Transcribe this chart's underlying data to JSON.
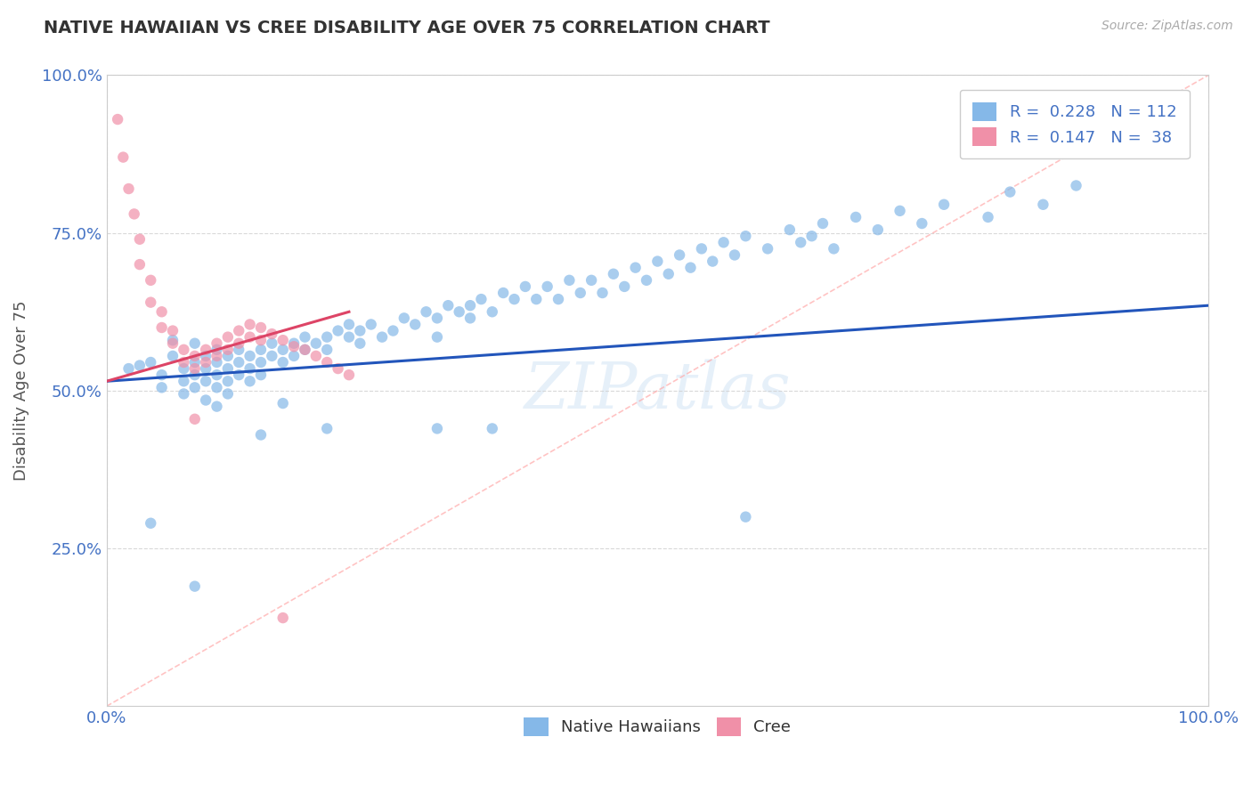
{
  "title": "NATIVE HAWAIIAN VS CREE DISABILITY AGE OVER 75 CORRELATION CHART",
  "source_text": "Source: ZipAtlas.com",
  "ylabel": "Disability Age Over 75",
  "xlim": [
    0.0,
    1.0
  ],
  "ylim": [
    0.0,
    1.0
  ],
  "xtick_labels": [
    "0.0%",
    "100.0%"
  ],
  "ytick_labels": [
    "25.0%",
    "50.0%",
    "75.0%",
    "100.0%"
  ],
  "ytick_positions": [
    0.25,
    0.5,
    0.75,
    1.0
  ],
  "nh_color": "#85b8e8",
  "cree_color": "#f090a8",
  "nh_line_color": "#2255bb",
  "cree_line_color": "#dd4466",
  "diagonal_color": "#ffaaaa",
  "watermark": "ZIPatlas",
  "nh_R": 0.228,
  "nh_N": 112,
  "cree_R": 0.147,
  "cree_N": 38,
  "nh_line_x0": 0.0,
  "nh_line_y0": 0.515,
  "nh_line_x1": 1.0,
  "nh_line_y1": 0.635,
  "cree_line_x0": 0.0,
  "cree_line_y0": 0.515,
  "cree_line_x1": 0.22,
  "cree_line_y1": 0.625,
  "nh_scatter_x": [
    0.02,
    0.03,
    0.04,
    0.05,
    0.05,
    0.06,
    0.06,
    0.07,
    0.07,
    0.07,
    0.08,
    0.08,
    0.08,
    0.08,
    0.09,
    0.09,
    0.09,
    0.09,
    0.1,
    0.1,
    0.1,
    0.1,
    0.1,
    0.11,
    0.11,
    0.11,
    0.11,
    0.12,
    0.12,
    0.12,
    0.13,
    0.13,
    0.13,
    0.14,
    0.14,
    0.14,
    0.15,
    0.15,
    0.16,
    0.16,
    0.17,
    0.17,
    0.18,
    0.18,
    0.19,
    0.2,
    0.2,
    0.21,
    0.22,
    0.22,
    0.23,
    0.23,
    0.24,
    0.25,
    0.26,
    0.27,
    0.28,
    0.29,
    0.3,
    0.3,
    0.31,
    0.32,
    0.33,
    0.33,
    0.34,
    0.35,
    0.36,
    0.37,
    0.38,
    0.39,
    0.4,
    0.41,
    0.42,
    0.43,
    0.44,
    0.45,
    0.46,
    0.47,
    0.48,
    0.49,
    0.5,
    0.51,
    0.52,
    0.53,
    0.54,
    0.55,
    0.56,
    0.57,
    0.58,
    0.6,
    0.62,
    0.63,
    0.64,
    0.65,
    0.66,
    0.68,
    0.7,
    0.72,
    0.74,
    0.76,
    0.8,
    0.82,
    0.85,
    0.88,
    0.14,
    0.16,
    0.2,
    0.3,
    0.35,
    0.58,
    0.04,
    0.08
  ],
  "nh_scatter_y": [
    0.535,
    0.54,
    0.545,
    0.525,
    0.505,
    0.555,
    0.58,
    0.535,
    0.515,
    0.495,
    0.575,
    0.545,
    0.525,
    0.505,
    0.555,
    0.535,
    0.515,
    0.485,
    0.565,
    0.545,
    0.525,
    0.505,
    0.475,
    0.555,
    0.535,
    0.515,
    0.495,
    0.565,
    0.545,
    0.525,
    0.555,
    0.535,
    0.515,
    0.565,
    0.545,
    0.525,
    0.575,
    0.555,
    0.565,
    0.545,
    0.575,
    0.555,
    0.585,
    0.565,
    0.575,
    0.585,
    0.565,
    0.595,
    0.605,
    0.585,
    0.595,
    0.575,
    0.605,
    0.585,
    0.595,
    0.615,
    0.605,
    0.625,
    0.615,
    0.585,
    0.635,
    0.625,
    0.635,
    0.615,
    0.645,
    0.625,
    0.655,
    0.645,
    0.665,
    0.645,
    0.665,
    0.645,
    0.675,
    0.655,
    0.675,
    0.655,
    0.685,
    0.665,
    0.695,
    0.675,
    0.705,
    0.685,
    0.715,
    0.695,
    0.725,
    0.705,
    0.735,
    0.715,
    0.745,
    0.725,
    0.755,
    0.735,
    0.745,
    0.765,
    0.725,
    0.775,
    0.755,
    0.785,
    0.765,
    0.795,
    0.775,
    0.815,
    0.795,
    0.825,
    0.43,
    0.48,
    0.44,
    0.44,
    0.44,
    0.3,
    0.29,
    0.19
  ],
  "cree_scatter_x": [
    0.01,
    0.015,
    0.02,
    0.025,
    0.03,
    0.03,
    0.04,
    0.04,
    0.05,
    0.05,
    0.06,
    0.06,
    0.07,
    0.07,
    0.08,
    0.08,
    0.09,
    0.09,
    0.1,
    0.1,
    0.11,
    0.11,
    0.12,
    0.12,
    0.13,
    0.13,
    0.14,
    0.14,
    0.15,
    0.16,
    0.17,
    0.18,
    0.19,
    0.2,
    0.21,
    0.22,
    0.08,
    0.16
  ],
  "cree_scatter_y": [
    0.93,
    0.87,
    0.82,
    0.78,
    0.74,
    0.7,
    0.675,
    0.64,
    0.625,
    0.6,
    0.595,
    0.575,
    0.565,
    0.545,
    0.555,
    0.535,
    0.565,
    0.545,
    0.575,
    0.555,
    0.585,
    0.565,
    0.595,
    0.575,
    0.605,
    0.585,
    0.6,
    0.58,
    0.59,
    0.58,
    0.57,
    0.565,
    0.555,
    0.545,
    0.535,
    0.525,
    0.455,
    0.14
  ]
}
